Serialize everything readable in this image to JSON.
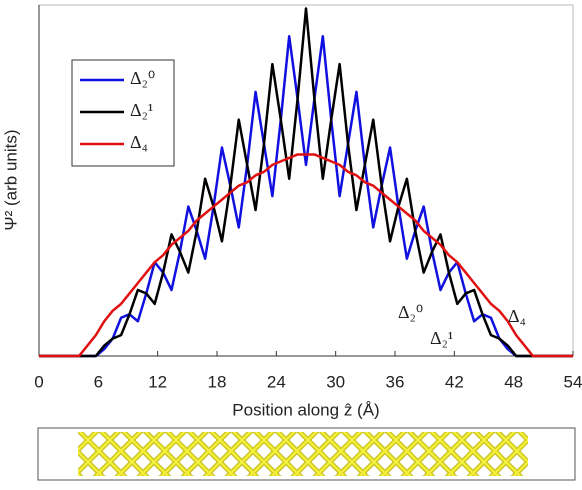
{
  "chart_data": {
    "type": "line",
    "x_label": "Position along ẑ (Å)",
    "y_label": "Ψ² (arb units)",
    "x": [
      0,
      4.05,
      4.9,
      5.75,
      6.6,
      7.45,
      8.3,
      9.15,
      10,
      10.85,
      11.7,
      12.55,
      13.4,
      14.25,
      15.1,
      15.95,
      16.8,
      17.65,
      18.5,
      19.35,
      20.2,
      21.05,
      21.9,
      22.75,
      23.6,
      24.45,
      25.3,
      26.15,
      27,
      27.85,
      28.7,
      29.55,
      30.4,
      31.25,
      32.1,
      32.95,
      33.8,
      34.65,
      35.5,
      36.35,
      37.2,
      38.05,
      38.9,
      39.75,
      40.6,
      41.45,
      42.3,
      43.15,
      44,
      44.85,
      45.7,
      46.55,
      47.4,
      48.25,
      49.1,
      49.95,
      54
    ],
    "series": [
      {
        "name": "Δ₂⁰",
        "color": "#1010e0",
        "values": [
          0,
          0,
          0,
          0,
          0.02,
          0.05,
          0.11,
          0.12,
          0.1,
          0.18,
          0.27,
          0.24,
          0.19,
          0.3,
          0.43,
          0.36,
          0.28,
          0.43,
          0.6,
          0.49,
          0.37,
          0.55,
          0.76,
          0.61,
          0.46,
          0.68,
          0.92,
          0.74,
          0.55,
          0.74,
          0.92,
          0.68,
          0.46,
          0.61,
          0.76,
          0.55,
          0.37,
          0.49,
          0.6,
          0.43,
          0.28,
          0.36,
          0.43,
          0.3,
          0.19,
          0.24,
          0.27,
          0.18,
          0.1,
          0.12,
          0.11,
          0.05,
          0.02,
          0,
          0,
          0,
          0
        ]
      },
      {
        "name": "Δ₂¹",
        "color": "#000000",
        "values": [
          0,
          0,
          0,
          0,
          0.03,
          0.05,
          0.06,
          0.12,
          0.19,
          0.18,
          0.15,
          0.24,
          0.35,
          0.3,
          0.24,
          0.36,
          0.51,
          0.43,
          0.33,
          0.49,
          0.68,
          0.55,
          0.42,
          0.61,
          0.84,
          0.68,
          0.51,
          0.74,
          1.0,
          0.74,
          0.51,
          0.68,
          0.84,
          0.61,
          0.42,
          0.55,
          0.68,
          0.49,
          0.33,
          0.43,
          0.51,
          0.36,
          0.24,
          0.3,
          0.35,
          0.24,
          0.15,
          0.18,
          0.19,
          0.12,
          0.06,
          0.05,
          0.03,
          0,
          0,
          0,
          0
        ]
      },
      {
        "name": "Δ₄",
        "color": "#e01010",
        "values": [
          0,
          0,
          0.03,
          0.06,
          0.1,
          0.13,
          0.15,
          0.18,
          0.21,
          0.24,
          0.27,
          0.29,
          0.32,
          0.34,
          0.36,
          0.39,
          0.41,
          0.43,
          0.45,
          0.47,
          0.49,
          0.5,
          0.52,
          0.53,
          0.55,
          0.56,
          0.57,
          0.58,
          0.58,
          0.58,
          0.57,
          0.56,
          0.55,
          0.53,
          0.52,
          0.5,
          0.49,
          0.47,
          0.45,
          0.43,
          0.41,
          0.39,
          0.36,
          0.34,
          0.32,
          0.29,
          0.27,
          0.24,
          0.21,
          0.18,
          0.15,
          0.13,
          0.1,
          0.06,
          0.03,
          0,
          0
        ]
      }
    ],
    "annotations": [
      "Δ₂⁰",
      "Δ₂¹",
      "Δ₄"
    ],
    "xlim": [
      0,
      54
    ],
    "xticks": [
      0,
      6,
      12,
      18,
      24,
      30,
      36,
      42,
      48,
      54
    ],
    "ylim": [
      0,
      1.01
    ],
    "legend": "upper-left"
  }
}
